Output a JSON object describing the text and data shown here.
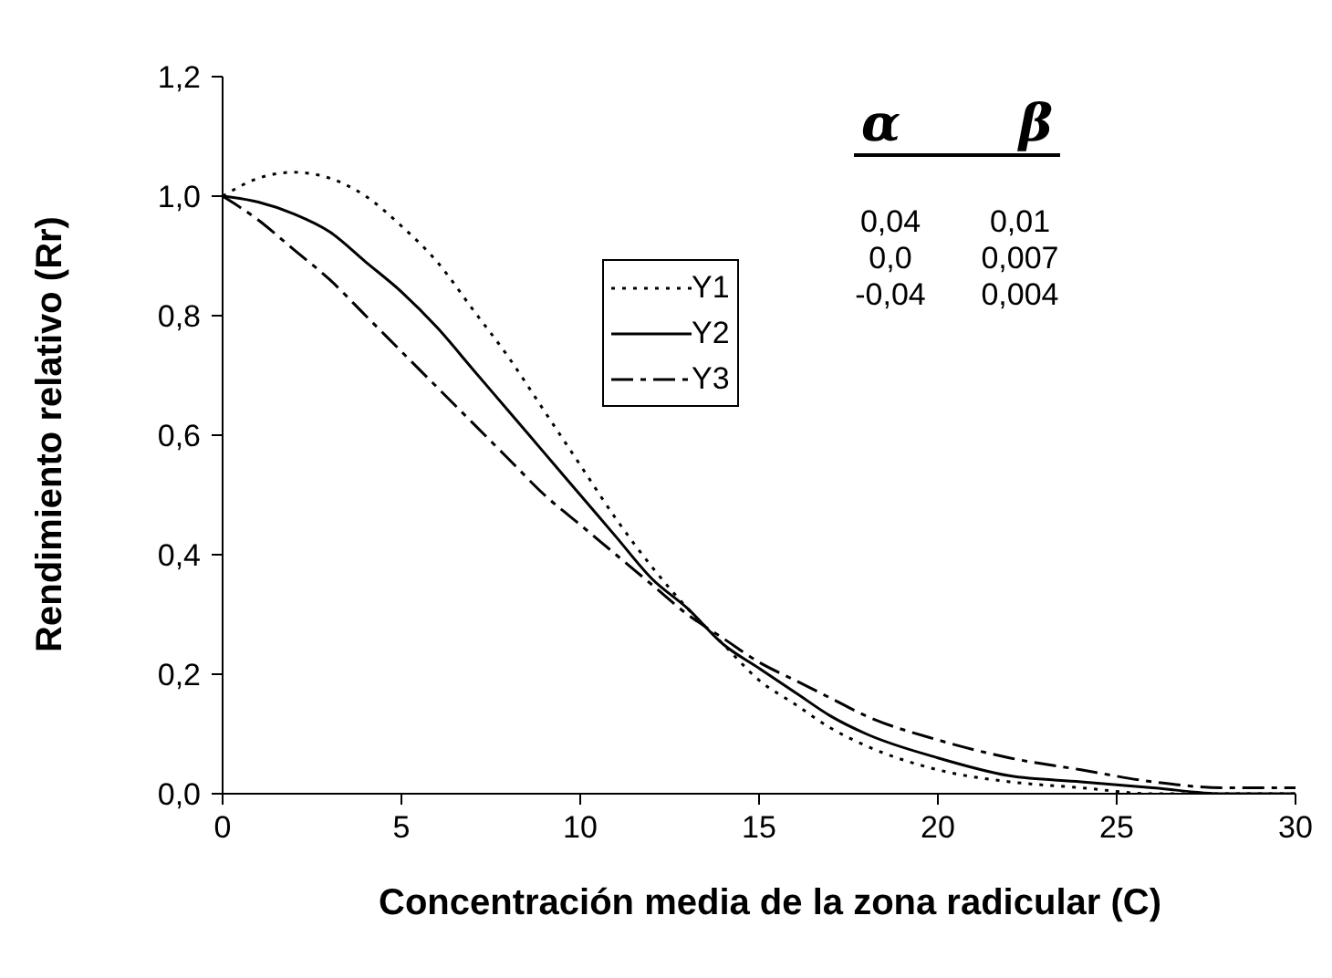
{
  "chart_data": {
    "type": "line",
    "xlabel": "Concentración media de la zona radicular (C)",
    "ylabel": "Rendimiento relativo (Rr)",
    "x": [
      0,
      1,
      2,
      3,
      4,
      5,
      6,
      7,
      8,
      9,
      10,
      11,
      12,
      13,
      14,
      15,
      16,
      17,
      18,
      20,
      22,
      24,
      26,
      28,
      30
    ],
    "series": [
      {
        "name": "Y1",
        "color": "#000000",
        "line_style": "dotted",
        "values": [
          1.0,
          1.03,
          1.04,
          1.03,
          1.0,
          0.95,
          0.89,
          0.81,
          0.73,
          0.64,
          0.55,
          0.46,
          0.38,
          0.31,
          0.25,
          0.19,
          0.15,
          0.11,
          0.08,
          0.04,
          0.02,
          0.01,
          0.0,
          0.0,
          0.0
        ]
      },
      {
        "name": "Y2",
        "color": "#000000",
        "line_style": "solid",
        "values": [
          1.0,
          0.99,
          0.97,
          0.94,
          0.89,
          0.84,
          0.78,
          0.71,
          0.64,
          0.57,
          0.5,
          0.43,
          0.36,
          0.31,
          0.25,
          0.21,
          0.17,
          0.13,
          0.1,
          0.06,
          0.03,
          0.02,
          0.01,
          0.0,
          0.0
        ]
      },
      {
        "name": "Y3",
        "color": "#000000",
        "line_style": "dashed",
        "values": [
          1.0,
          0.96,
          0.91,
          0.86,
          0.8,
          0.74,
          0.68,
          0.62,
          0.56,
          0.5,
          0.45,
          0.4,
          0.35,
          0.3,
          0.26,
          0.22,
          0.19,
          0.16,
          0.13,
          0.09,
          0.06,
          0.04,
          0.02,
          0.01,
          0.01
        ]
      }
    ],
    "xlim": [
      0,
      30
    ],
    "xticks": [
      0,
      5,
      10,
      15,
      20,
      25,
      30
    ],
    "ylim": [
      0,
      1.2
    ],
    "yticks": [
      {
        "value": 0,
        "label": "0,0"
      },
      {
        "value": 0.2,
        "label": "0,2"
      },
      {
        "value": 0.4,
        "label": "0,4"
      },
      {
        "value": 0.6,
        "label": "0,6"
      },
      {
        "value": 0.8,
        "label": "0,8"
      },
      {
        "value": 1.0,
        "label": "1,0"
      },
      {
        "value": 1.2,
        "label": "1,2"
      }
    ],
    "annotations": [
      "α",
      "β",
      "0,04",
      "0,01",
      "0,0",
      "0,007",
      "-0,04",
      "0,004"
    ],
    "legend": "top",
    "grid": false,
    "marker": "none"
  }
}
